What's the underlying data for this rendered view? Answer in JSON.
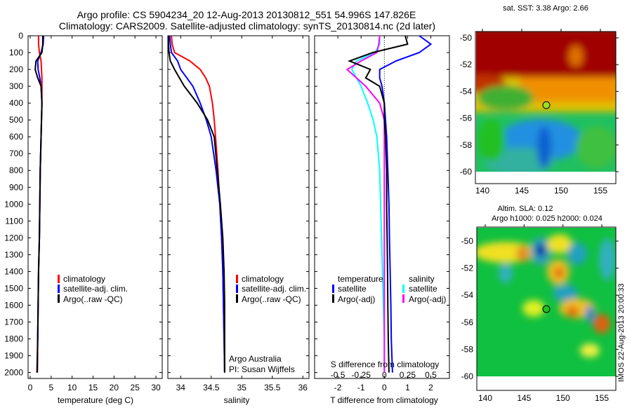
{
  "title": {
    "line1": "Argo profile: CS 5904234_20 12-Aug-2013 20130812_551 54.996S 147.826E",
    "line2": "Climatology: CARS2009. Satellite-adjusted climatology: synTS_20130814.nc (2d later)"
  },
  "colors": {
    "climatology": "#ff0000",
    "satellite": "#0000ff",
    "argo": "#000000",
    "sal_satellite": "#00ffff",
    "sal_argo": "#ff00ff"
  },
  "chart_data": [
    {
      "type": "line",
      "name": "temperature",
      "xlabel": "temperature (deg C)",
      "ylabel": "",
      "xlim": [
        -0.5,
        31.5
      ],
      "ylim": [
        2035,
        0
      ],
      "xticks": [
        "0",
        "5",
        "10",
        "15",
        "20",
        "25",
        "30"
      ],
      "yticks": [
        "0",
        "100",
        "200",
        "300",
        "400",
        "500",
        "600",
        "700",
        "800",
        "900",
        "1000",
        "1100",
        "1200",
        "1300",
        "1400",
        "1500",
        "1600",
        "1700",
        "1800",
        "1900",
        "2000"
      ],
      "depth": [
        0,
        50,
        100,
        150,
        200,
        250,
        300,
        400,
        500,
        600,
        800,
        1000,
        1200,
        1400,
        1600,
        1800,
        2000
      ],
      "series": [
        {
          "name": "climatology",
          "values": [
            2.0,
            2.0,
            2.2,
            2.6,
            2.7,
            2.8,
            2.8,
            2.8,
            2.7,
            2.6,
            2.4,
            2.3,
            2.2,
            2.0,
            1.9,
            1.8,
            1.6
          ]
        },
        {
          "name": "satellite-adj. clim.",
          "values": [
            3.2,
            3.1,
            2.6,
            1.8,
            1.9,
            2.3,
            2.6,
            2.8,
            2.7,
            2.6,
            2.4,
            2.3,
            2.2,
            2.0,
            1.9,
            1.8,
            1.7
          ]
        },
        {
          "name": "Argo(..raw -QC)",
          "values": [
            3.0,
            3.0,
            2.8,
            1.4,
            1.2,
            1.8,
            2.6,
            2.8,
            2.7,
            2.6,
            2.4,
            2.3,
            2.2,
            2.0,
            1.9,
            1.8,
            1.7
          ]
        }
      ],
      "legend": [
        "climatology",
        "satellite-adj. clim.",
        "Argo(..raw -QC)"
      ]
    },
    {
      "type": "line",
      "name": "salinity",
      "xlabel": "salinity",
      "xlim": [
        33.79,
        36.1
      ],
      "ylim": [
        2035,
        0
      ],
      "xticks": [
        "34",
        "34.5",
        "35",
        "35.5",
        "36"
      ],
      "depth": [
        0,
        50,
        100,
        150,
        200,
        250,
        300,
        400,
        500,
        600,
        800,
        1000,
        1200,
        1400,
        1600,
        1800,
        2000
      ],
      "series": [
        {
          "name": "climatology",
          "values": [
            33.85,
            33.86,
            33.9,
            34.15,
            34.32,
            34.41,
            34.47,
            34.52,
            34.55,
            34.57,
            34.61,
            34.64,
            34.67,
            34.69,
            34.7,
            34.71,
            34.72
          ]
        },
        {
          "name": "satellite-adj. clim.",
          "values": [
            33.82,
            33.83,
            33.85,
            33.95,
            34.0,
            34.1,
            34.2,
            34.32,
            34.42,
            34.5,
            34.58,
            34.64,
            34.67,
            34.69,
            34.7,
            34.71,
            34.72
          ]
        },
        {
          "name": "Argo(..raw -QC)",
          "values": [
            33.8,
            33.8,
            33.81,
            33.83,
            33.9,
            33.98,
            34.06,
            34.27,
            34.44,
            34.55,
            34.6,
            34.65,
            34.69,
            34.71,
            34.72,
            34.72,
            34.72
          ]
        }
      ],
      "legend": [
        "climatology",
        "satellite-adj. clim.",
        "Argo(..raw -QC)"
      ],
      "annotations": [
        "Argo Australia",
        "PI: Susan Wijffels"
      ]
    },
    {
      "type": "line",
      "name": "difference",
      "xlabel": "T difference from climatology",
      "xlabel_top": "S difference from climatology",
      "xlim": [
        -3.0,
        2.8
      ],
      "xlim_s": [
        -0.75,
        0.7
      ],
      "xticks": [
        "-2",
        "-1",
        "0",
        "1",
        "2"
      ],
      "xticks_s": [
        "-0.5",
        "-0.25",
        "0",
        "0.25",
        "0.5"
      ],
      "depth": [
        0,
        50,
        100,
        150,
        200,
        250,
        300,
        400,
        500,
        600,
        800,
        1000,
        1200,
        1400,
        1600,
        1800,
        2000
      ],
      "series": [
        {
          "name": "temperature satellite",
          "axis": "T",
          "values": [
            1.5,
            2.0,
            1.5,
            0.5,
            -0.2,
            -0.2,
            -0.1,
            0.0,
            0.05,
            0.1,
            0.15,
            0.2,
            0.22,
            0.25,
            0.28,
            0.3,
            0.35
          ]
        },
        {
          "name": "temperature Argo(-adj)",
          "axis": "T",
          "values": [
            0.9,
            1.0,
            -0.5,
            -1.5,
            -0.6,
            -0.8,
            -0.2,
            0.0,
            0.0,
            0.05,
            0.1,
            0.1,
            0.12,
            0.14,
            0.15,
            0.17,
            0.2
          ]
        },
        {
          "name": "salinity satellite",
          "axis": "S",
          "values": [
            -0.05,
            -0.05,
            -0.1,
            -0.3,
            -0.35,
            -0.3,
            -0.25,
            -0.18,
            -0.12,
            -0.08,
            -0.05,
            -0.04,
            -0.03,
            -0.02,
            -0.01,
            0.0,
            0.0
          ]
        },
        {
          "name": "salinity Argo(-adj)",
          "axis": "S",
          "values": [
            -0.05,
            -0.06,
            -0.08,
            -0.25,
            -0.4,
            -0.3,
            -0.2,
            -0.05,
            0.0,
            0.0,
            0.0,
            0.0,
            0.0,
            0.0,
            0.0,
            0.0,
            0.0
          ]
        }
      ],
      "legend": {
        "temperature_header": "temperature",
        "salinity_header": "salinity",
        "t_sat": "satellite",
        "t_argo": "Argo(-adj)",
        "s_sat": "satellite",
        "s_argo": "Argo(-adj)"
      }
    }
  ],
  "maps": {
    "sst": {
      "title": "sat. SST: 3.38 Argo: 2.66",
      "lat_ticks": [
        "-50",
        "-52",
        "-54",
        "-56",
        "-58",
        "-60"
      ],
      "lon_ticks": [
        "140",
        "145",
        "150",
        "155"
      ]
    },
    "sla": {
      "title1": "Altim. SLA: 0.12",
      "title2": "Argo h1000: 0.025 h2000: 0.024",
      "lat_ticks": [
        "-50",
        "-52",
        "-54",
        "-56",
        "-58",
        "-60"
      ],
      "lon_ticks": [
        "140",
        "145",
        "150",
        "155"
      ]
    },
    "profile_location": {
      "lat": -54.996,
      "lon": 147.826
    },
    "stamp": "IMOS 22-Aug-2013 20:00:33"
  }
}
